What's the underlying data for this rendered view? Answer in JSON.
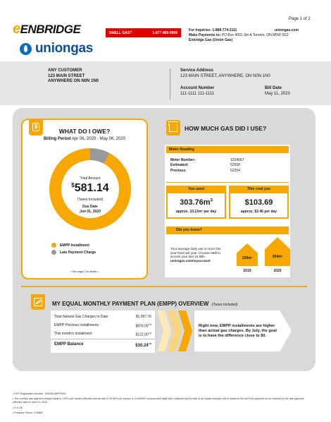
{
  "header": {
    "page": "Page 1 of 2",
    "brand1": "ENBRIDGE",
    "brand2": "uniongas",
    "smell_label": "SMELL GAS?",
    "smell_phone": "1-877-969-0999",
    "inquiries": "For Inquiries: 1-888-774-3111",
    "website": "uniongas.com",
    "payments_label": "Make Payments to:",
    "payments_addr": "PO Box 4001 Stn A Toronto, ON M5W 0G2",
    "payments_co": "Enbridge Gas (Union Gas)"
  },
  "customer": {
    "name": "ANY CUSTOMER",
    "street": "123 MAIN STREET",
    "city": "ANYWHERE ON  N0N 1N0"
  },
  "service": {
    "addr_label": "Service Address",
    "addr": "123 MAIN STREET, ANYWHERE, ON N0N 1N0",
    "acct_label": "Account Number",
    "acct": "111-1111 111-1111",
    "bill_label": "Bill Date",
    "bill": "May 11, 2020"
  },
  "owe": {
    "title": "WHAT DO I OWE?",
    "period_label": "Billing Period",
    "period": "Apr 06, 2020 - May 06, 2020",
    "total_label": "Total Amount",
    "currency": "$",
    "amount": "581.14",
    "taxes": "(Taxes Included)",
    "due_label": "Due Date",
    "due": "Jun 01, 2020",
    "legend1": "EMPP Installment",
    "legend2": "Late Payment Charge",
    "note": "• See page 2 for details •",
    "share": {
      "empp": 0.922,
      "late": 0.078
    },
    "colors": {
      "empp": "#f6a800",
      "late": "#999999"
    }
  },
  "gas": {
    "title": "HOW MUCH GAS DID I USE?",
    "meter_label": "Meter Reading",
    "meter_num_label": "Meter Number:",
    "meter_num": "1234567",
    "est_label": "Estimated:",
    "est": "52558",
    "prev_label": "Previous:",
    "prev": "52254",
    "used_label": "You used",
    "used": "303.76m",
    "used_sup": "3",
    "used_per_day": "approx. 10.13m³ per day",
    "cost_label": "This cost you",
    "cost": "$103.69",
    "cost_per_day": "approx. $3.46 per day",
    "know_label": "Did you know?",
    "know1": "Your average daily use is more this",
    "know2": "year than last year. Choose eBill to",
    "know3": "access your last 24 bills:",
    "know4": "uniongas.com/myaccount",
    "y1_val": "230m³",
    "y1": "2019",
    "y2_val": "304m³",
    "y2": "2020"
  },
  "empp": {
    "title": "MY EQUAL MONTHLY PAYMENT PLAN (EMPP) OVERVIEW",
    "tax_note": "(Taxes Included)",
    "r1_label": "Total Natural Gas Charges to Date",
    "r1_val": "$1,067.76",
    "r2_label": "EMPP Previous Installments",
    "r2_val": "$976.00",
    "r2_sup": "CR",
    "r3_label": "This month's installment",
    "r3_val": "$122.00",
    "r3_sup": "CR",
    "r4_label": "EMPP Balance",
    "r4_val": "$30.24",
    "r4_sup": "CR",
    "msg1": "Right now, EMPP installments are higher",
    "msg2": "than actual gas charges. By July, the goal",
    "msg3": "is to have the difference close to $0."
  },
  "footer": {
    "f1": "• HST Registration Number: 105035145RT0001",
    "f2": "• The monthly late payment charge equal to 1.50% per month (effective annual rate of 19.56% per annum or 0.04909% compounded daily rate) multiplied by the total of all unpaid charges will be added to the bill if full payment is not received by the late payment",
    "f2b": "effective date of June 01, 2020.",
    "f3": "• E & OE",
    "f4": "• Pressure Factor: 0.99882"
  }
}
